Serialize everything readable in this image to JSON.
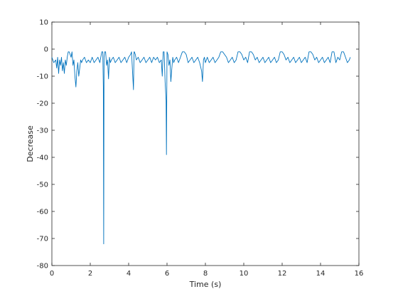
{
  "chart_data": {
    "type": "line",
    "title": "",
    "xlabel": "Time (s)",
    "ylabel": "Decrease",
    "xlim": [
      0,
      16
    ],
    "ylim": [
      -80,
      10
    ],
    "xticks": [
      0,
      2,
      4,
      6,
      8,
      10,
      12,
      14,
      16
    ],
    "yticks": [
      10,
      0,
      -10,
      -20,
      -30,
      -40,
      -50,
      -60,
      -70,
      -80
    ],
    "grid": false,
    "box": true,
    "line_color": "#0072BD",
    "series": [
      {
        "x": [
          0.0,
          0.1,
          0.2,
          0.25,
          0.3,
          0.35,
          0.4,
          0.45,
          0.5,
          0.55,
          0.6,
          0.65,
          0.7,
          0.75,
          0.8,
          0.85,
          0.9,
          0.95,
          1.0,
          1.05,
          1.1,
          1.15,
          1.2,
          1.25,
          1.3,
          1.35,
          1.4,
          1.45,
          1.5,
          1.55,
          1.6,
          1.7,
          1.8,
          1.9,
          2.0,
          2.1,
          2.2,
          2.3,
          2.4,
          2.5,
          2.55,
          2.6,
          2.65,
          2.68,
          2.7,
          2.72,
          2.75,
          2.8,
          2.85,
          2.9,
          2.95,
          3.0,
          3.05,
          3.1,
          3.2,
          3.3,
          3.4,
          3.5,
          3.6,
          3.7,
          3.8,
          3.9,
          4.0,
          4.1,
          4.15,
          4.2,
          4.25,
          4.28,
          4.3,
          4.35,
          4.4,
          4.5,
          4.6,
          4.7,
          4.8,
          4.9,
          5.0,
          5.1,
          5.2,
          5.3,
          5.4,
          5.5,
          5.6,
          5.7,
          5.75,
          5.8,
          5.85,
          5.9,
          5.95,
          5.97,
          6.0,
          6.05,
          6.1,
          6.15,
          6.2,
          6.25,
          6.3,
          6.35,
          6.4,
          6.5,
          6.6,
          6.7,
          6.8,
          6.9,
          7.0,
          7.1,
          7.2,
          7.3,
          7.4,
          7.5,
          7.6,
          7.7,
          7.8,
          7.85,
          7.9,
          7.95,
          8.0,
          8.05,
          8.1,
          8.2,
          8.3,
          8.4,
          8.5,
          8.6,
          8.7,
          8.8,
          8.9,
          9.0,
          9.1,
          9.2,
          9.3,
          9.4,
          9.5,
          9.6,
          9.7,
          9.8,
          9.9,
          10.0,
          10.1,
          10.2,
          10.3,
          10.4,
          10.5,
          10.6,
          10.7,
          10.8,
          10.9,
          11.0,
          11.1,
          11.2,
          11.3,
          11.4,
          11.5,
          11.6,
          11.7,
          11.8,
          11.9,
          12.0,
          12.1,
          12.2,
          12.3,
          12.4,
          12.5,
          12.6,
          12.7,
          12.8,
          12.9,
          13.0,
          13.1,
          13.2,
          13.3,
          13.4,
          13.5,
          13.6,
          13.7,
          13.8,
          13.9,
          14.0,
          14.1,
          14.2,
          14.3,
          14.4,
          14.5,
          14.6,
          14.7,
          14.8,
          14.9,
          15.0,
          15.1,
          15.2,
          15.3,
          15.4,
          15.5,
          15.55
        ],
        "y": [
          -3,
          -5,
          -4,
          -7,
          -3,
          -9,
          -4,
          -6,
          -3,
          -8,
          -5,
          -9,
          -4,
          -6,
          -3,
          -1,
          -1,
          -2,
          -3,
          -1,
          -6,
          -4,
          -10,
          -14,
          -8,
          -5,
          -10,
          -7,
          -4,
          -5,
          -4,
          -3,
          -5,
          -4,
          -5,
          -3,
          -5,
          -4,
          -3,
          -5,
          -3,
          -1,
          -1,
          -14,
          -72,
          -3,
          -1,
          -1,
          -6,
          -4,
          -11,
          -3,
          -5,
          -4,
          -3,
          -5,
          -4,
          -3,
          -5,
          -4,
          -3,
          -5,
          -3,
          -2,
          -1,
          -8,
          -15,
          -1,
          -1,
          -2,
          -4,
          -3,
          -5,
          -4,
          -3,
          -5,
          -4,
          -3,
          -5,
          -3,
          -4,
          -3,
          -5,
          -4,
          -10,
          -1,
          -1,
          -12,
          -19,
          -39,
          -1,
          -2,
          -6,
          -4,
          -12,
          -7,
          -3,
          -5,
          -4,
          -3,
          -5,
          -3,
          -1,
          -1,
          -2,
          -5,
          -4,
          -3,
          -5,
          -4,
          -3,
          -5,
          -8,
          -12,
          -4,
          -3,
          -5,
          -4,
          -3,
          -5,
          -4,
          -3,
          -5,
          -4,
          -3,
          -1,
          -1,
          -2,
          -3,
          -5,
          -4,
          -3,
          -5,
          -4,
          -1,
          -1,
          -2,
          -4,
          -3,
          -5,
          -1,
          -1,
          -2,
          -4,
          -3,
          -5,
          -4,
          -3,
          -5,
          -4,
          -3,
          -5,
          -4,
          -3,
          -5,
          -4,
          -1,
          -1,
          -2,
          -4,
          -3,
          -5,
          -4,
          -3,
          -5,
          -4,
          -3,
          -5,
          -4,
          -3,
          -5,
          -1,
          -1,
          -2,
          -4,
          -3,
          -5,
          -4,
          -3,
          -5,
          -4,
          -3,
          -5,
          -1,
          -1,
          -5,
          -3,
          -4,
          -1,
          -1,
          -3,
          -5,
          -4,
          -3
        ]
      }
    ]
  }
}
